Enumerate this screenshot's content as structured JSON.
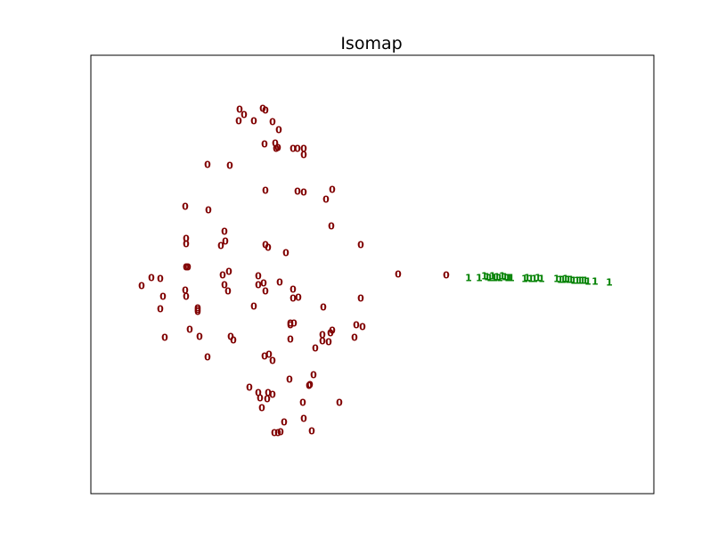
{
  "chart_data": {
    "type": "scatter",
    "title": "Isomap",
    "xlabel": "",
    "ylabel": "",
    "xlim": [
      0,
      632
    ],
    "ylim": [
      0,
      492
    ],
    "grid": false,
    "ticks": false,
    "series": [
      {
        "label": "0",
        "color": "#800000",
        "points": [
          [
            167,
            431
          ],
          [
            193,
            432
          ],
          [
            196,
            430
          ],
          [
            172,
            425
          ],
          [
            183,
            418
          ],
          [
            204,
            417
          ],
          [
            166,
            418
          ],
          [
            211,
            408
          ],
          [
            195,
            392
          ],
          [
            207,
            393
          ],
          [
            208,
            387
          ],
          [
            210,
            388
          ],
          [
            227,
            387
          ],
          [
            232,
            387
          ],
          [
            239,
            387
          ],
          [
            131,
            369
          ],
          [
            156,
            368
          ],
          [
            239,
            380
          ],
          [
            196,
            340
          ],
          [
            232,
            339
          ],
          [
            239,
            338
          ],
          [
            271,
            341
          ],
          [
            264,
            330
          ],
          [
            106,
            322
          ],
          [
            132,
            318
          ],
          [
            270,
            300
          ],
          [
            146,
            278
          ],
          [
            196,
            279
          ],
          [
            107,
            280
          ],
          [
            107,
            286
          ],
          [
            150,
            294
          ],
          [
            151,
            283
          ],
          [
            199,
            276
          ],
          [
            219,
            270
          ],
          [
            303,
            279
          ],
          [
            345,
            246
          ],
          [
            399,
            245
          ],
          [
            78,
            241
          ],
          [
            68,
            242
          ],
          [
            57,
            233
          ],
          [
            107,
            254
          ],
          [
            109,
            254
          ],
          [
            148,
            245
          ],
          [
            155,
            249
          ],
          [
            188,
            244
          ],
          [
            194,
            236
          ],
          [
            212,
            237
          ],
          [
            150,
            234
          ],
          [
            106,
            228
          ],
          [
            188,
            234
          ],
          [
            107,
            221
          ],
          [
            120,
            208
          ],
          [
            154,
            227
          ],
          [
            196,
            227
          ],
          [
            227,
            229
          ],
          [
            81,
            221
          ],
          [
            78,
            207
          ],
          [
            120,
            206
          ],
          [
            120,
            204
          ],
          [
            227,
            219
          ],
          [
            233,
            220
          ],
          [
            183,
            210
          ],
          [
            303,
            219
          ],
          [
            261,
            209
          ],
          [
            224,
            191
          ],
          [
            228,
            191
          ],
          [
            224,
            189
          ],
          [
            260,
            178
          ],
          [
            111,
            184
          ],
          [
            122,
            176
          ],
          [
            298,
            189
          ],
          [
            305,
            187
          ],
          [
            271,
            183
          ],
          [
            269,
            180
          ],
          [
            296,
            175
          ],
          [
            260,
            171
          ],
          [
            83,
            175
          ],
          [
            157,
            176
          ],
          [
            160,
            172
          ],
          [
            224,
            173
          ],
          [
            267,
            170
          ],
          [
            252,
            163
          ],
          [
            131,
            153
          ],
          [
            195,
            154
          ],
          [
            200,
            156
          ],
          [
            204,
            149
          ],
          [
            223,
            128
          ],
          [
            250,
            133
          ],
          [
            245,
            121
          ],
          [
            246,
            122
          ],
          [
            178,
            119
          ],
          [
            188,
            113
          ],
          [
            199,
            113
          ],
          [
            204,
            111
          ],
          [
            190,
            107
          ],
          [
            198,
            106
          ],
          [
            238,
            102
          ],
          [
            192,
            96
          ],
          [
            217,
            80
          ],
          [
            239,
            84
          ],
          [
            206,
            68
          ],
          [
            210,
            68
          ],
          [
            213,
            69
          ],
          [
            248,
            70
          ],
          [
            279,
            102
          ]
        ]
      },
      {
        "label": "1",
        "color": "#008000",
        "points": [
          [
            424,
            242
          ],
          [
            436,
            242
          ],
          [
            442,
            244
          ],
          [
            445,
            243
          ],
          [
            448,
            242
          ],
          [
            451,
            244
          ],
          [
            453,
            242
          ],
          [
            456,
            243
          ],
          [
            459,
            242
          ],
          [
            462,
            244
          ],
          [
            465,
            243
          ],
          [
            468,
            242
          ],
          [
            470,
            242
          ],
          [
            472,
            242
          ],
          [
            487,
            241
          ],
          [
            490,
            242
          ],
          [
            494,
            241
          ],
          [
            498,
            241
          ],
          [
            502,
            242
          ],
          [
            506,
            241
          ],
          [
            523,
            241
          ],
          [
            527,
            240
          ],
          [
            530,
            240
          ],
          [
            533,
            241
          ],
          [
            536,
            240
          ],
          [
            539,
            240
          ],
          [
            542,
            239
          ],
          [
            546,
            239
          ],
          [
            549,
            239
          ],
          [
            552,
            239
          ],
          [
            555,
            239
          ],
          [
            558,
            238
          ],
          [
            566,
            238
          ],
          [
            582,
            237
          ]
        ]
      }
    ]
  }
}
